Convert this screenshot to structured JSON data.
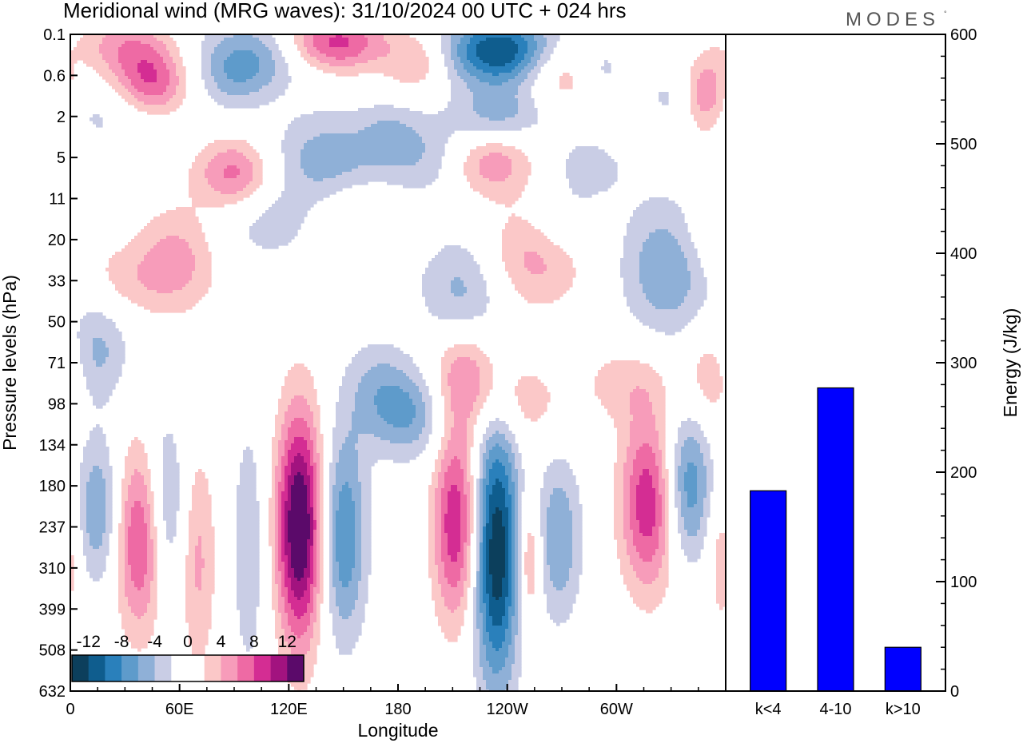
{
  "title": "Meridional wind (MRG waves):  31/10/2024  00 UTC  + 024 hrs",
  "logo": "MODES",
  "logo_mark": "°",
  "chart_data": [
    {
      "type": "heatmap",
      "title": "Meridional wind (MRG waves):  31/10/2024  00 UTC  + 024 hrs",
      "xlabel": "Longitude",
      "ylabel": "Pressure levels (hPa)",
      "x_ticks": [
        "0",
        "60E",
        "120E",
        "180",
        "120W",
        "60W"
      ],
      "x_tick_degrees": [
        0,
        60,
        120,
        180,
        240,
        300
      ],
      "xlim": [
        0,
        360
      ],
      "y_ticks": [
        "0.1",
        "0.6",
        "2",
        "5",
        "11",
        "20",
        "33",
        "50",
        "71",
        "98",
        "134",
        "180",
        "237",
        "310",
        "399",
        "508",
        "632"
      ],
      "colorbar": {
        "labels": [
          "-12",
          "-8",
          "-4",
          "0",
          "4",
          "8",
          "12"
        ],
        "colors": [
          "#0c3f5c",
          "#0f5d8e",
          "#2a80bb",
          "#5e9bcb",
          "#8fb0d7",
          "#c9cde5",
          "#ffffff",
          "#ffffff",
          "#fbc8c8",
          "#f79cba",
          "#ee6aa4",
          "#d42d93",
          "#a2137f",
          "#5b0a6a"
        ]
      },
      "features": [
        {
          "lon": 22,
          "level": 2.0,
          "sx": 26,
          "sy": 0.55,
          "peak": -2.5
        },
        {
          "lon": 15,
          "level": 11.6,
          "sx": 9,
          "sy": 1.3,
          "peak": -6
        },
        {
          "lon": 39,
          "level": 12.3,
          "sx": 10,
          "sy": 1.6,
          "peak": 9
        },
        {
          "lon": 52,
          "level": 11.6,
          "sx": 8,
          "sy": 1.6,
          "peak": -6
        },
        {
          "lon": 70,
          "level": 12.8,
          "sx": 7,
          "sy": 1.9,
          "peak": 4.5
        },
        {
          "lon": 98,
          "level": 12.5,
          "sx": 7,
          "sy": 2.4,
          "peak": -3.5
        },
        {
          "lon": 126,
          "level": 12.0,
          "sx": 9,
          "sy": 2.0,
          "peak": 15
        },
        {
          "lon": 150,
          "level": 12.2,
          "sx": 9,
          "sy": 1.8,
          "peak": -8
        },
        {
          "lon": 212,
          "level": 11.9,
          "sx": 9,
          "sy": 1.7,
          "peak": 10
        },
        {
          "lon": 234,
          "level": 12.6,
          "sx": 9,
          "sy": 2.3,
          "peak": -14
        },
        {
          "lon": 252,
          "level": 12.8,
          "sx": 5,
          "sy": 1.1,
          "peak": 6
        },
        {
          "lon": 268,
          "level": 12.3,
          "sx": 9,
          "sy": 1.4,
          "peak": -6
        },
        {
          "lon": 318,
          "level": 11.4,
          "sx": 11,
          "sy": 1.5,
          "peak": 10
        },
        {
          "lon": 339,
          "level": 11.0,
          "sx": 10,
          "sy": 1.3,
          "peak": -8
        },
        {
          "lon": 358,
          "level": 12.5,
          "sx": 6,
          "sy": 1.4,
          "peak": 4
        },
        {
          "lon": 15,
          "level": 7.7,
          "sx": 12,
          "sy": 0.9,
          "peak": -4.5
        },
        {
          "lon": 218,
          "level": 8.3,
          "sx": 15,
          "sy": 0.9,
          "peak": 6
        },
        {
          "lon": 168,
          "level": 8.7,
          "sx": 12,
          "sy": 0.9,
          "peak": -4
        },
        {
          "lon": 188,
          "level": 9.2,
          "sx": 14,
          "sy": 0.8,
          "peak": -6
        },
        {
          "lon": 250,
          "level": 9.0,
          "sx": 15,
          "sy": 0.7,
          "peak": 3
        },
        {
          "lon": 305,
          "level": 8.5,
          "sx": 18,
          "sy": 0.7,
          "peak": 3
        },
        {
          "lon": 352,
          "level": 8.3,
          "sx": 10,
          "sy": 0.9,
          "peak": 4
        },
        {
          "lon": 58,
          "level": 5.5,
          "sx": 16,
          "sy": 0.9,
          "peak": 5
        },
        {
          "lon": 215,
          "level": 6.3,
          "sx": 16,
          "sy": 1.0,
          "peak": -5
        },
        {
          "lon": 255,
          "level": 5.4,
          "sx": 20,
          "sy": 0.9,
          "peak": 5
        },
        {
          "lon": 328,
          "level": 5.7,
          "sx": 18,
          "sy": 1.2,
          "peak": -6
        },
        {
          "lon": 30,
          "level": 6.0,
          "sx": 16,
          "sy": 0.6,
          "peak": 2.5
        },
        {
          "lon": 110,
          "level": 4.6,
          "sx": 22,
          "sy": 0.7,
          "peak": -3
        },
        {
          "lon": 160,
          "level": 4.6,
          "sx": 18,
          "sy": 0.6,
          "peak": 4
        },
        {
          "lon": 165,
          "level": 5.3,
          "sx": 14,
          "sy": 0.6,
          "peak": -3
        },
        {
          "lon": 270,
          "level": 4.6,
          "sx": 14,
          "sy": 0.6,
          "peak": -3
        },
        {
          "lon": 355,
          "level": 4.9,
          "sx": 14,
          "sy": 0.7,
          "peak": 3
        },
        {
          "lon": 90,
          "level": 3.4,
          "sx": 15,
          "sy": 0.6,
          "peak": 7
        },
        {
          "lon": 140,
          "level": 3.0,
          "sx": 22,
          "sy": 0.8,
          "peak": -5
        },
        {
          "lon": 195,
          "level": 3.0,
          "sx": 20,
          "sy": 0.7,
          "peak": -4
        },
        {
          "lon": 230,
          "level": 3.1,
          "sx": 17,
          "sy": 0.6,
          "peak": 6
        },
        {
          "lon": 285,
          "level": 3.2,
          "sx": 16,
          "sy": 0.6,
          "peak": -3
        },
        {
          "lon": 175,
          "level": 2.3,
          "sx": 12,
          "sy": 0.5,
          "peak": -2.5
        },
        {
          "lon": 235,
          "level": 2.0,
          "sx": 18,
          "sy": 0.5,
          "peak": -5
        },
        {
          "lon": 310,
          "level": 2.0,
          "sx": 14,
          "sy": 0.5,
          "peak": 2.5
        },
        {
          "lon": 45,
          "level": 1.2,
          "sx": 14,
          "sy": 0.6,
          "peak": 8
        },
        {
          "lon": 90,
          "level": 1.2,
          "sx": 14,
          "sy": 0.5,
          "peak": -3
        },
        {
          "lon": 270,
          "level": 1.0,
          "sx": 14,
          "sy": 0.5,
          "peak": 4
        },
        {
          "lon": 350,
          "level": 1.5,
          "sx": 8,
          "sy": 0.7,
          "peak": 6
        },
        {
          "lon": 325,
          "level": 1.6,
          "sx": 8,
          "sy": 0.4,
          "peak": -3
        },
        {
          "lon": 30,
          "level": 0.3,
          "sx": 18,
          "sy": 0.5,
          "peak": 5
        },
        {
          "lon": 100,
          "level": 0.5,
          "sx": 22,
          "sy": 0.6,
          "peak": -6
        },
        {
          "lon": 145,
          "level": 0.2,
          "sx": 20,
          "sy": 0.5,
          "peak": 9
        },
        {
          "lon": 190,
          "level": 0.7,
          "sx": 12,
          "sy": 0.5,
          "peak": 4
        },
        {
          "lon": 235,
          "level": 0.4,
          "sx": 20,
          "sy": 0.6,
          "peak": -12
        },
        {
          "lon": 292,
          "level": 0.9,
          "sx": 10,
          "sy": 0.5,
          "peak": -3
        }
      ]
    },
    {
      "type": "bar",
      "categories": [
        "k<4",
        "4-10",
        "k>10"
      ],
      "values": [
        183,
        277,
        40
      ],
      "ylabel": "Energy (J/kg)",
      "ylim": [
        0,
        600
      ],
      "y_ticks": [
        0,
        100,
        200,
        300,
        400,
        500,
        600
      ],
      "bar_color": "#0000ff"
    }
  ]
}
